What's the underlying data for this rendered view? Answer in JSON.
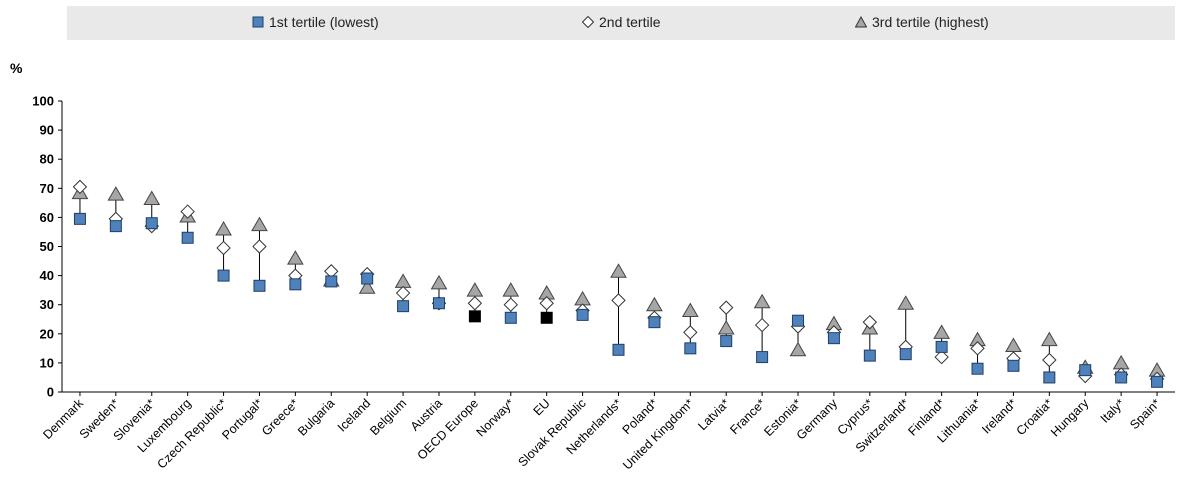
{
  "legend": {
    "t1": "1st tertile (lowest)",
    "t2": "2nd tertile",
    "t3": "3rd tertile (highest)"
  },
  "colors": {
    "t1": "#4f81bd",
    "t1_highlight": "#000000",
    "t2": "#ffffff",
    "t3": "#a6a6a6",
    "legend_bg": "#e9e9e9"
  },
  "chart_data": {
    "type": "scatter",
    "ylabel": "%",
    "ylim": [
      0,
      100
    ],
    "yticks": [
      0,
      10,
      20,
      30,
      40,
      50,
      60,
      70,
      80,
      90,
      100
    ],
    "legend_position": "top",
    "grid": false,
    "categories": [
      "Denmark",
      "Sweden*",
      "Slovenia*",
      "Luxembourg",
      "Czech Republic*",
      "Portugal*",
      "Greece*",
      "Bulgaria",
      "Iceland",
      "Belgium",
      "Austria",
      "OECD Europe",
      "Norway*",
      "EU",
      "Slovak Republic",
      "Netherlands*",
      "Poland*",
      "United Kingdom*",
      "Latvia*",
      "France*",
      "Estonia*",
      "Germany",
      "Cyprus*",
      "Switzerland*",
      "Finland*",
      "Lithuania*",
      "Ireland*",
      "Croatia*",
      "Hungary",
      "Italy*",
      "Spain*"
    ],
    "highlight": [
      "OECD Europe",
      "EU"
    ],
    "series": [
      {
        "name": "1st tertile (lowest)",
        "marker": "square",
        "values": [
          59.5,
          57,
          58,
          53,
          40,
          36.5,
          37,
          38,
          39,
          29.5,
          30.5,
          26,
          25.5,
          25.5,
          26.5,
          14.5,
          24,
          15,
          17.5,
          12,
          24.5,
          18.5,
          12.5,
          13,
          15.5,
          8,
          9,
          5,
          7.5,
          5,
          3.5
        ]
      },
      {
        "name": "2nd tertile",
        "marker": "diamond",
        "values": [
          70.5,
          59.5,
          57,
          62,
          49.5,
          50,
          40,
          41.5,
          40.5,
          34,
          30.5,
          30.5,
          30,
          30.5,
          28,
          31.5,
          25.5,
          20.5,
          29,
          23,
          22.5,
          20.5,
          24,
          15.5,
          12,
          15,
          11.5,
          11,
          5.5,
          6,
          4.5
        ]
      },
      {
        "name": "3rd tertile (highest)",
        "marker": "triangle",
        "values": [
          68.5,
          68,
          66.5,
          60.5,
          56,
          57.5,
          46,
          38.5,
          36,
          38,
          37.5,
          35,
          35,
          34,
          32,
          41.5,
          30,
          28,
          22,
          31,
          14.5,
          23.5,
          22,
          30.5,
          20.5,
          18,
          16,
          18,
          8.5,
          10,
          7.5
        ]
      }
    ]
  }
}
